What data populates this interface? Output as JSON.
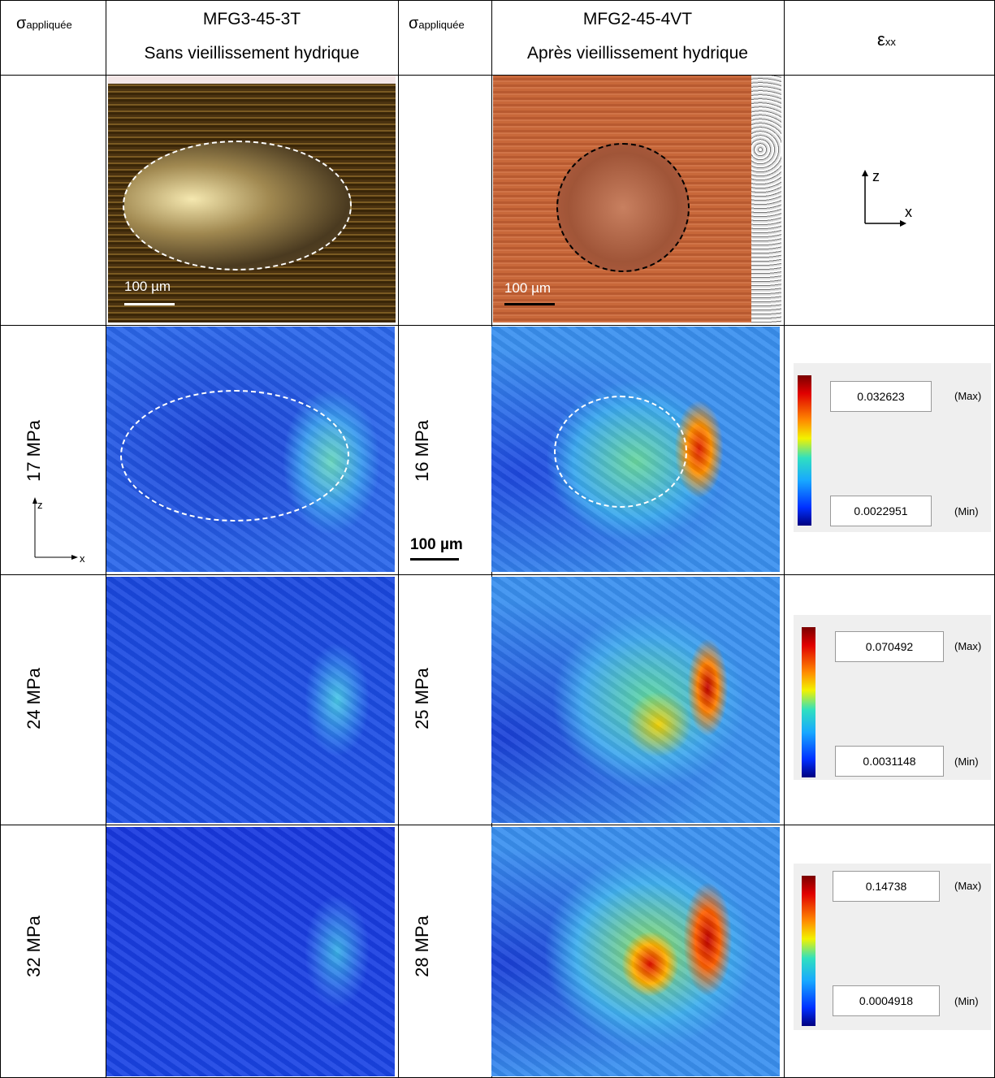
{
  "header": {
    "sigma_1": {
      "symbol": "σ",
      "subscript": "appliquée"
    },
    "specimen_1": {
      "name": "MFG3-45-3T",
      "condition": "Sans vieillissement hydrique"
    },
    "sigma_2": {
      "symbol": "σ",
      "subscript": "appliquée"
    },
    "specimen_2": {
      "name": "MFG2-45-4VT",
      "condition": "Après vieillissement hydrique"
    },
    "strain": {
      "symbol": "ε",
      "subscript": "xx"
    }
  },
  "micrographs": {
    "scale_1": "100 µm",
    "scale_2": "100 µm",
    "axis_z": "z",
    "axis_x": "x"
  },
  "rows": [
    {
      "stress_1": "17 MPa",
      "stress_2": "16 MPa",
      "max": "0.032623",
      "max_label": "(Max)",
      "min": "0.0022951",
      "min_label": "(Min)"
    },
    {
      "stress_1": "24 MPa",
      "stress_2": "25 MPa",
      "max": "0.070492",
      "max_label": "(Max)",
      "min": "0.0031148",
      "min_label": "(Min)"
    },
    {
      "stress_1": "32 MPa",
      "stress_2": "28 MPa",
      "max": "0.14738",
      "max_label": "(Max)",
      "min": "0.0004918",
      "min_label": "(Min)"
    }
  ],
  "map_axes": {
    "z": "z",
    "x": "x"
  },
  "scale_bar": "100 µm"
}
